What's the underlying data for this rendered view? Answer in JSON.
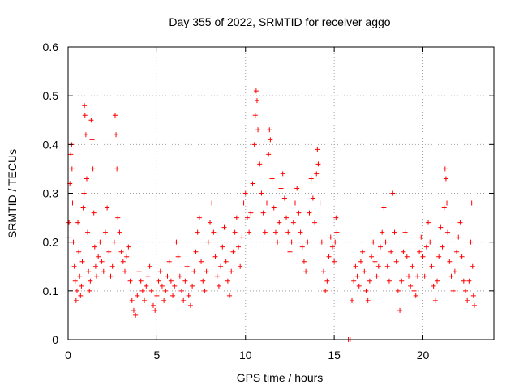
{
  "chart_data": {
    "type": "scatter",
    "title": "Day 355 of 2022, SRMTID for receiver aggo",
    "xlabel": "GPS time / hours",
    "ylabel": "SRMTID / TECUs",
    "xlim": [
      0,
      24
    ],
    "ylim": [
      0,
      0.6
    ],
    "xticks": [
      0,
      5,
      10,
      15,
      20
    ],
    "xtick_labels": [
      "0",
      "5",
      "10",
      "15",
      "20"
    ],
    "yticks": [
      0,
      0.1,
      0.2,
      0.3,
      0.4,
      0.5,
      0.6
    ],
    "ytick_labels": [
      "0",
      "0.1",
      "0.2",
      "0.3",
      "0.4",
      "0.5",
      "0.6"
    ],
    "grid": true,
    "marker": "+",
    "marker_color": "#ff0000",
    "series": [
      {
        "name": "SRMTID",
        "points": [
          [
            0.0,
            0.21
          ],
          [
            0.05,
            0.24
          ],
          [
            0.1,
            0.32
          ],
          [
            0.15,
            0.38
          ],
          [
            0.2,
            0.4
          ],
          [
            0.22,
            0.35
          ],
          [
            0.25,
            0.28
          ],
          [
            0.3,
            0.2
          ],
          [
            0.35,
            0.15
          ],
          [
            0.4,
            0.12
          ],
          [
            0.45,
            0.08
          ],
          [
            0.5,
            0.1
          ],
          [
            0.55,
            0.24
          ],
          [
            0.6,
            0.18
          ],
          [
            0.65,
            0.13
          ],
          [
            0.7,
            0.09
          ],
          [
            0.75,
            0.11
          ],
          [
            0.8,
            0.16
          ],
          [
            0.85,
            0.27
          ],
          [
            0.9,
            0.3
          ],
          [
            0.92,
            0.48
          ],
          [
            0.95,
            0.46
          ],
          [
            1.0,
            0.42
          ],
          [
            1.05,
            0.33
          ],
          [
            1.1,
            0.22
          ],
          [
            1.15,
            0.14
          ],
          [
            1.2,
            0.1
          ],
          [
            1.25,
            0.12
          ],
          [
            1.3,
            0.45
          ],
          [
            1.35,
            0.41
          ],
          [
            1.4,
            0.35
          ],
          [
            1.45,
            0.26
          ],
          [
            1.5,
            0.19
          ],
          [
            1.55,
            0.15
          ],
          [
            1.6,
            0.13
          ],
          [
            1.7,
            0.17
          ],
          [
            1.8,
            0.2
          ],
          [
            1.9,
            0.16
          ],
          [
            2.0,
            0.14
          ],
          [
            2.1,
            0.22
          ],
          [
            2.2,
            0.27
          ],
          [
            2.3,
            0.18
          ],
          [
            2.4,
            0.13
          ],
          [
            2.5,
            0.15
          ],
          [
            2.6,
            0.2
          ],
          [
            2.65,
            0.46
          ],
          [
            2.7,
            0.42
          ],
          [
            2.75,
            0.35
          ],
          [
            2.8,
            0.25
          ],
          [
            2.9,
            0.22
          ],
          [
            3.0,
            0.18
          ],
          [
            3.1,
            0.16
          ],
          [
            3.2,
            0.14
          ],
          [
            3.3,
            0.17
          ],
          [
            3.4,
            0.19
          ],
          [
            3.5,
            0.12
          ],
          [
            3.6,
            0.08
          ],
          [
            3.7,
            0.06
          ],
          [
            3.8,
            0.05
          ],
          [
            3.9,
            0.09
          ],
          [
            4.0,
            0.14
          ],
          [
            4.1,
            0.12
          ],
          [
            4.2,
            0.1
          ],
          [
            4.3,
            0.08
          ],
          [
            4.4,
            0.11
          ],
          [
            4.5,
            0.13
          ],
          [
            4.6,
            0.15
          ],
          [
            4.7,
            0.1
          ],
          [
            4.8,
            0.07
          ],
          [
            4.9,
            0.06
          ],
          [
            5.0,
            0.09
          ],
          [
            5.1,
            0.12
          ],
          [
            5.2,
            0.14
          ],
          [
            5.3,
            0.11
          ],
          [
            5.4,
            0.08
          ],
          [
            5.5,
            0.1
          ],
          [
            5.6,
            0.13
          ],
          [
            5.7,
            0.16
          ],
          [
            5.8,
            0.12
          ],
          [
            5.9,
            0.09
          ],
          [
            6.0,
            0.11
          ],
          [
            6.1,
            0.2
          ],
          [
            6.2,
            0.17
          ],
          [
            6.3,
            0.13
          ],
          [
            6.4,
            0.1
          ],
          [
            6.5,
            0.08
          ],
          [
            6.6,
            0.12
          ],
          [
            6.7,
            0.15
          ],
          [
            6.8,
            0.09
          ],
          [
            6.9,
            0.07
          ],
          [
            7.0,
            0.11
          ],
          [
            7.1,
            0.14
          ],
          [
            7.2,
            0.18
          ],
          [
            7.3,
            0.22
          ],
          [
            7.4,
            0.25
          ],
          [
            7.5,
            0.16
          ],
          [
            7.6,
            0.12
          ],
          [
            7.7,
            0.1
          ],
          [
            7.8,
            0.14
          ],
          [
            7.9,
            0.2
          ],
          [
            8.0,
            0.24
          ],
          [
            8.1,
            0.28
          ],
          [
            8.2,
            0.22
          ],
          [
            8.3,
            0.17
          ],
          [
            8.4,
            0.13
          ],
          [
            8.5,
            0.11
          ],
          [
            8.6,
            0.15
          ],
          [
            8.7,
            0.19
          ],
          [
            8.8,
            0.23
          ],
          [
            8.9,
            0.16
          ],
          [
            9.0,
            0.12
          ],
          [
            9.1,
            0.09
          ],
          [
            9.2,
            0.14
          ],
          [
            9.3,
            0.18
          ],
          [
            9.4,
            0.22
          ],
          [
            9.5,
            0.25
          ],
          [
            9.6,
            0.19
          ],
          [
            9.7,
            0.15
          ],
          [
            9.8,
            0.21
          ],
          [
            9.9,
            0.28
          ],
          [
            10.0,
            0.3
          ],
          [
            10.1,
            0.25
          ],
          [
            10.2,
            0.22
          ],
          [
            10.3,
            0.26
          ],
          [
            10.4,
            0.32
          ],
          [
            10.5,
            0.4
          ],
          [
            10.55,
            0.46
          ],
          [
            10.6,
            0.51
          ],
          [
            10.65,
            0.49
          ],
          [
            10.7,
            0.43
          ],
          [
            10.8,
            0.36
          ],
          [
            10.9,
            0.3
          ],
          [
            11.0,
            0.26
          ],
          [
            11.1,
            0.22
          ],
          [
            11.2,
            0.28
          ],
          [
            11.3,
            0.38
          ],
          [
            11.35,
            0.43
          ],
          [
            11.4,
            0.41
          ],
          [
            11.5,
            0.33
          ],
          [
            11.6,
            0.27
          ],
          [
            11.7,
            0.22
          ],
          [
            11.8,
            0.2
          ],
          [
            11.9,
            0.24
          ],
          [
            12.0,
            0.31
          ],
          [
            12.1,
            0.34
          ],
          [
            12.2,
            0.29
          ],
          [
            12.3,
            0.25
          ],
          [
            12.4,
            0.22
          ],
          [
            12.5,
            0.18
          ],
          [
            12.6,
            0.2
          ],
          [
            12.7,
            0.24
          ],
          [
            12.8,
            0.28
          ],
          [
            12.9,
            0.31
          ],
          [
            13.0,
            0.26
          ],
          [
            13.1,
            0.22
          ],
          [
            13.2,
            0.19
          ],
          [
            13.3,
            0.16
          ],
          [
            13.4,
            0.14
          ],
          [
            13.5,
            0.2
          ],
          [
            13.6,
            0.26
          ],
          [
            13.7,
            0.33
          ],
          [
            13.8,
            0.29
          ],
          [
            13.9,
            0.24
          ],
          [
            14.0,
            0.34
          ],
          [
            14.05,
            0.39
          ],
          [
            14.1,
            0.36
          ],
          [
            14.2,
            0.28
          ],
          [
            14.3,
            0.2
          ],
          [
            14.4,
            0.14
          ],
          [
            14.5,
            0.1
          ],
          [
            14.6,
            0.12
          ],
          [
            14.7,
            0.17
          ],
          [
            14.8,
            0.21
          ],
          [
            14.9,
            0.19
          ],
          [
            15.0,
            0.16
          ],
          [
            15.05,
            0.2
          ],
          [
            15.1,
            0.25
          ],
          [
            15.15,
            0.22
          ],
          [
            15.8,
            0.0
          ],
          [
            15.9,
            0.0
          ],
          [
            16.0,
            0.08
          ],
          [
            16.1,
            0.12
          ],
          [
            16.2,
            0.15
          ],
          [
            16.3,
            0.13
          ],
          [
            16.4,
            0.11
          ],
          [
            16.5,
            0.16
          ],
          [
            16.6,
            0.18
          ],
          [
            16.7,
            0.14
          ],
          [
            16.8,
            0.1
          ],
          [
            16.9,
            0.08
          ],
          [
            17.0,
            0.12
          ],
          [
            17.1,
            0.17
          ],
          [
            17.2,
            0.2
          ],
          [
            17.3,
            0.16
          ],
          [
            17.4,
            0.13
          ],
          [
            17.5,
            0.15
          ],
          [
            17.6,
            0.19
          ],
          [
            17.7,
            0.22
          ],
          [
            17.8,
            0.27
          ],
          [
            17.9,
            0.2
          ],
          [
            18.0,
            0.15
          ],
          [
            18.1,
            0.12
          ],
          [
            18.2,
            0.18
          ],
          [
            18.3,
            0.3
          ],
          [
            18.4,
            0.22
          ],
          [
            18.5,
            0.16
          ],
          [
            18.6,
            0.1
          ],
          [
            18.7,
            0.06
          ],
          [
            18.8,
            0.12
          ],
          [
            18.9,
            0.18
          ],
          [
            19.0,
            0.22
          ],
          [
            19.1,
            0.17
          ],
          [
            19.2,
            0.13
          ],
          [
            19.3,
            0.11
          ],
          [
            19.4,
            0.15
          ],
          [
            19.5,
            0.1
          ],
          [
            19.6,
            0.09
          ],
          [
            19.7,
            0.13
          ],
          [
            19.8,
            0.18
          ],
          [
            19.9,
            0.21
          ],
          [
            20.0,
            0.17
          ],
          [
            20.1,
            0.13
          ],
          [
            20.2,
            0.19
          ],
          [
            20.3,
            0.24
          ],
          [
            20.4,
            0.2
          ],
          [
            20.5,
            0.15
          ],
          [
            20.6,
            0.11
          ],
          [
            20.7,
            0.08
          ],
          [
            20.8,
            0.12
          ],
          [
            20.9,
            0.17
          ],
          [
            21.0,
            0.23
          ],
          [
            21.1,
            0.19
          ],
          [
            21.2,
            0.27
          ],
          [
            21.25,
            0.35
          ],
          [
            21.3,
            0.33
          ],
          [
            21.35,
            0.28
          ],
          [
            21.4,
            0.22
          ],
          [
            21.5,
            0.16
          ],
          [
            21.6,
            0.13
          ],
          [
            21.7,
            0.1
          ],
          [
            21.8,
            0.14
          ],
          [
            21.9,
            0.18
          ],
          [
            22.0,
            0.21
          ],
          [
            22.1,
            0.24
          ],
          [
            22.2,
            0.17
          ],
          [
            22.3,
            0.12
          ],
          [
            22.4,
            0.1
          ],
          [
            22.5,
            0.08
          ],
          [
            22.6,
            0.12
          ],
          [
            22.7,
            0.2
          ],
          [
            22.75,
            0.28
          ],
          [
            22.8,
            0.15
          ],
          [
            22.85,
            0.09
          ],
          [
            22.9,
            0.07
          ]
        ]
      }
    ]
  }
}
